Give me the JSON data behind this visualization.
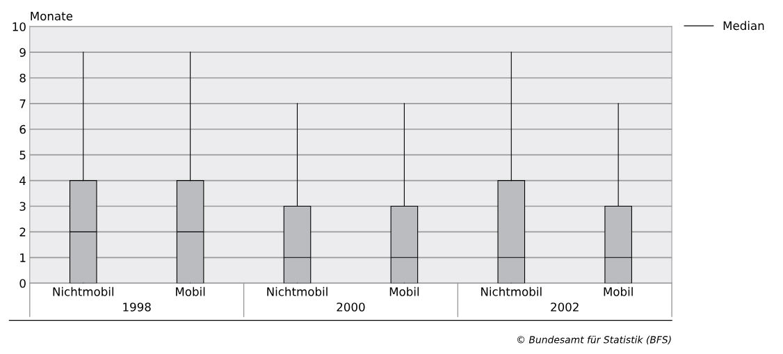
{
  "chart_data": {
    "type": "box",
    "ylabel": "Monate",
    "categories": [
      "Nichtmobil",
      "Mobil",
      "Nichtmobil",
      "Mobil",
      "Nichtmobil",
      "Mobil"
    ],
    "series": [
      {
        "name": "Median",
        "color": "#bbbcc0",
        "boxes": [
          {
            "low": 0,
            "q1": 0,
            "median": 2,
            "q3": 4,
            "high": 9
          },
          {
            "low": 0,
            "q1": 0,
            "median": 2,
            "q3": 4,
            "high": 9
          },
          {
            "low": 0,
            "q1": 0,
            "median": 1,
            "q3": 3,
            "high": 7
          },
          {
            "low": 0,
            "q1": 0,
            "median": 1,
            "q3": 3,
            "high": 7
          },
          {
            "low": 0,
            "q1": 0,
            "median": 1,
            "q3": 4,
            "high": 9
          },
          {
            "low": 0,
            "q1": 0,
            "median": 1,
            "q3": 3,
            "high": 7
          }
        ]
      }
    ],
    "ylim": [
      0,
      10
    ],
    "yticks": [
      0,
      1,
      2,
      3,
      4,
      5,
      6,
      7,
      8,
      9,
      10
    ],
    "grid": "y",
    "legend": "top right",
    "annotations": [
      "1998",
      "2000",
      "2002",
      "© Bundesamt für Statistik (BFS)"
    ]
  }
}
